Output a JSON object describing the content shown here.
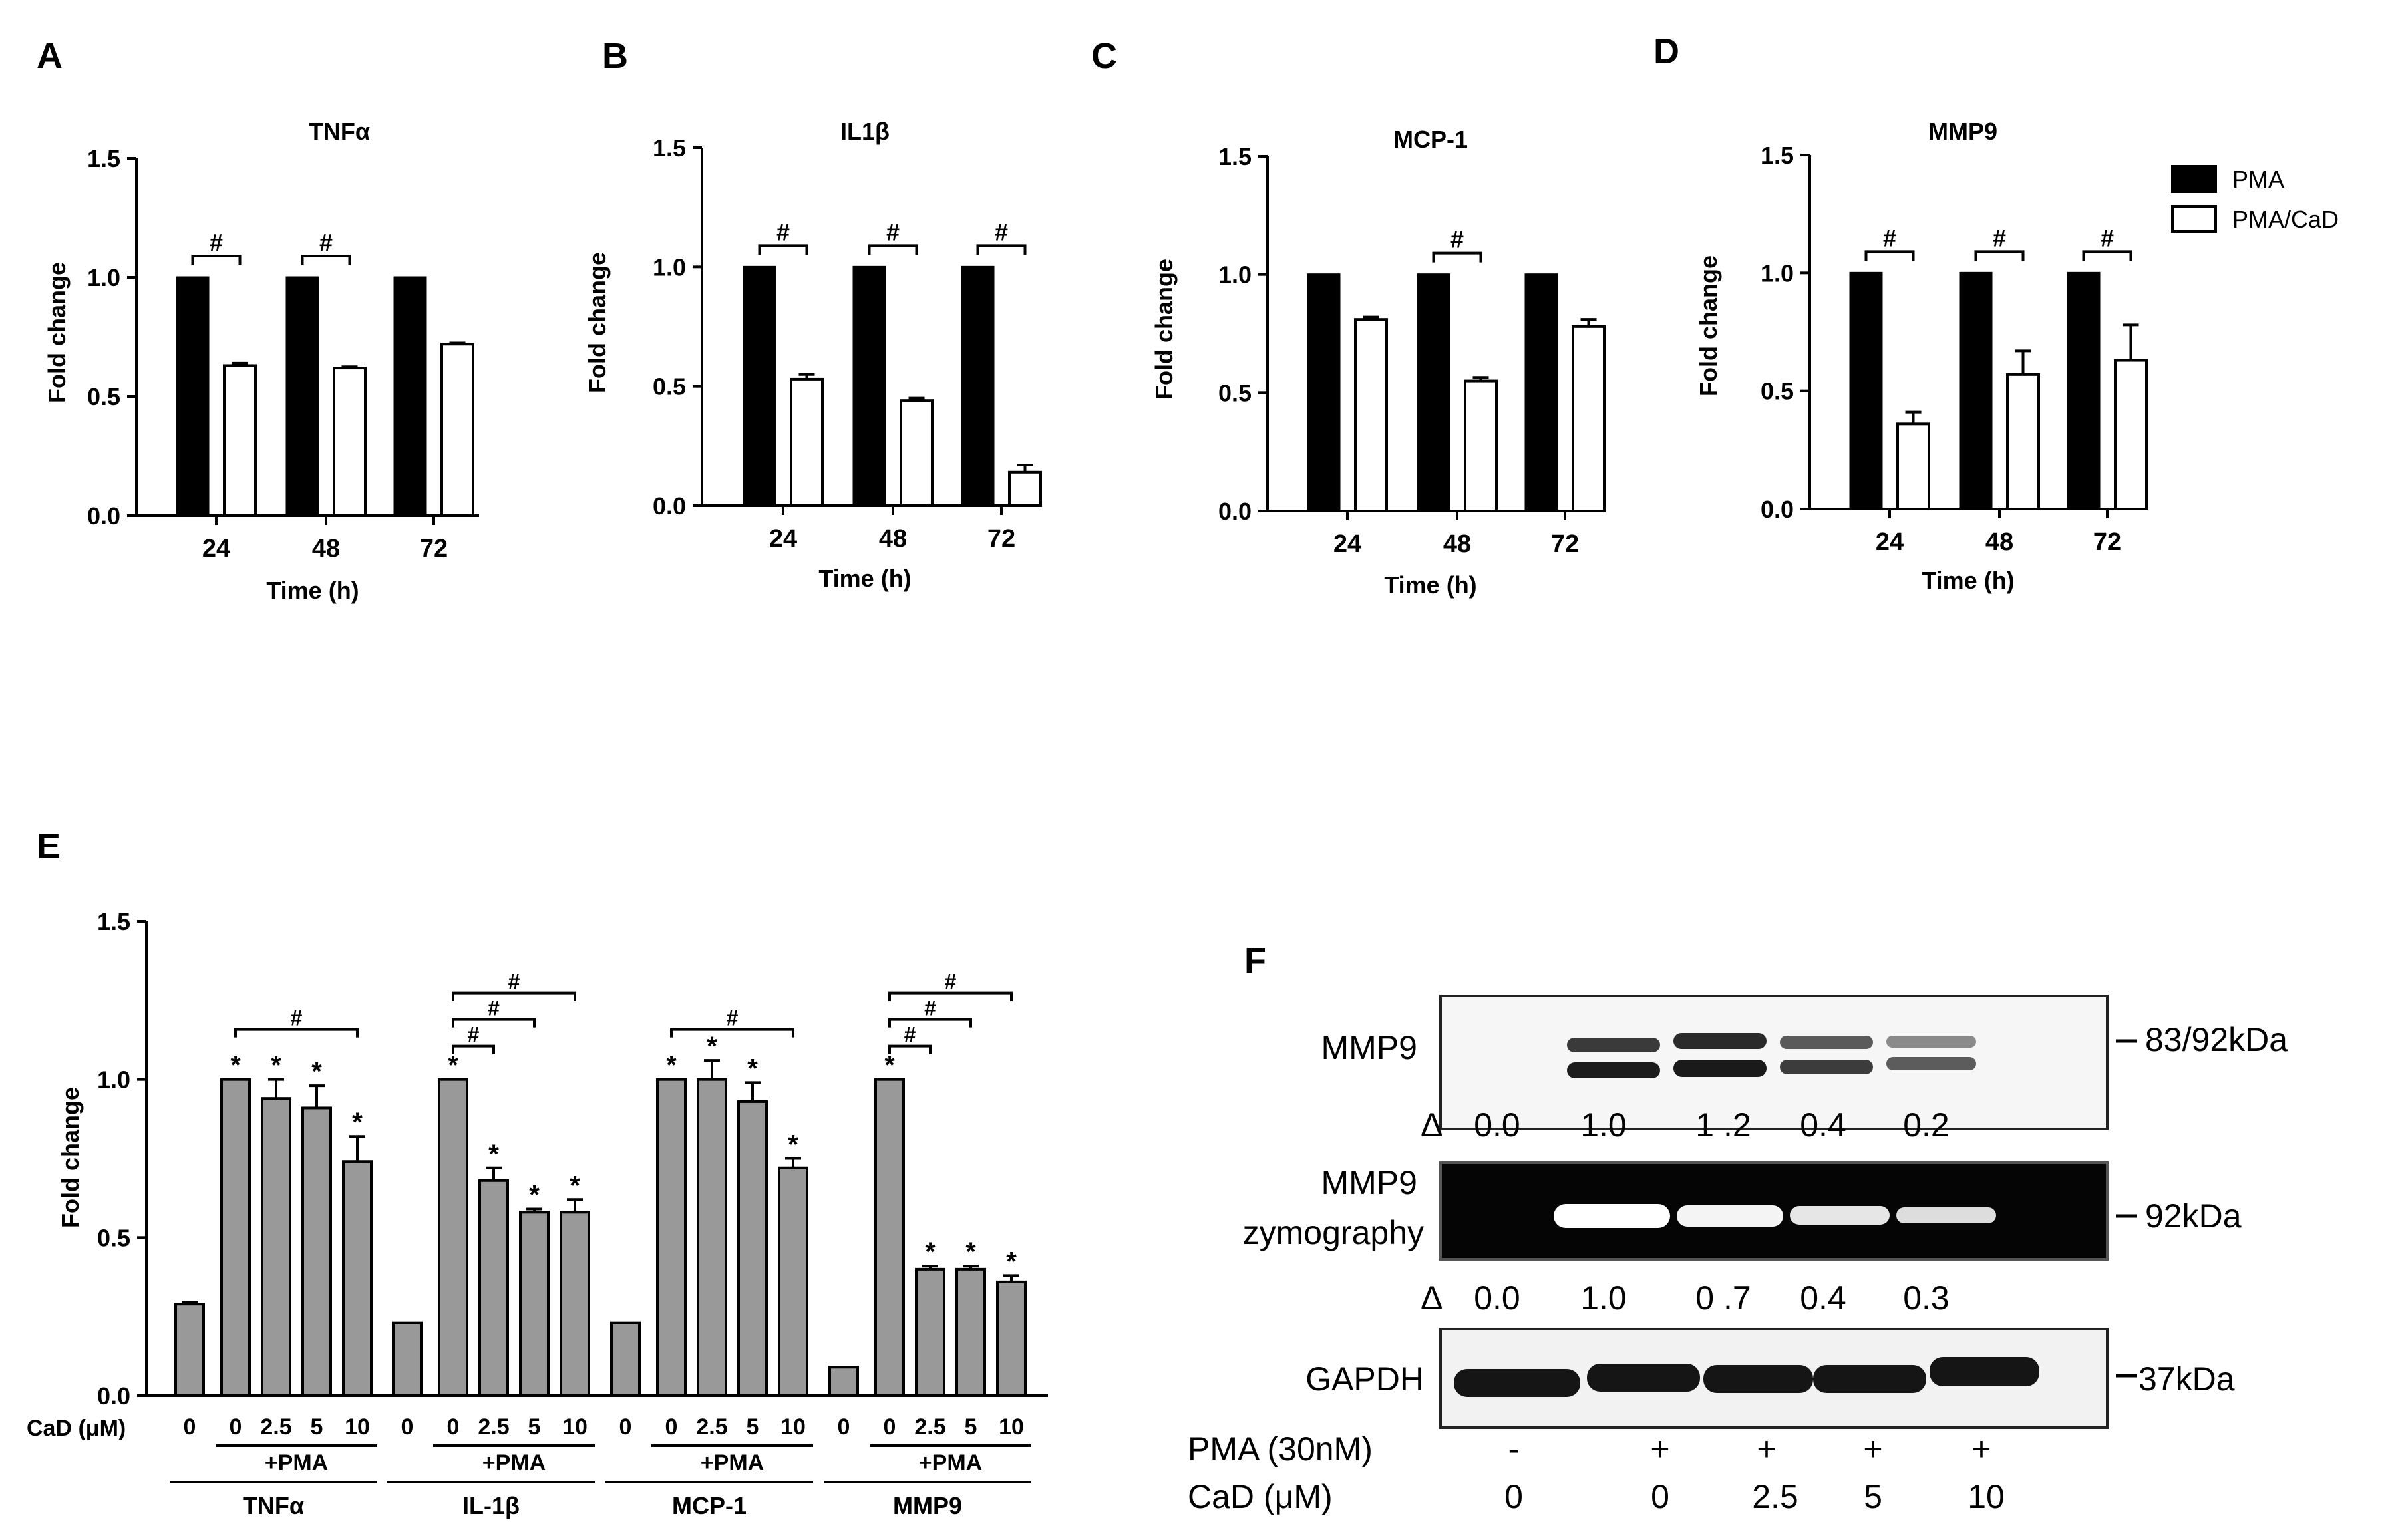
{
  "panels": [
    {
      "letter": "A",
      "title": "TNFα",
      "ylabel": "Fold change",
      "xlabel": "Time (h)",
      "yticks": [
        "0.0",
        "0.5",
        "1.0",
        "1.5"
      ],
      "categories": [
        "24",
        "48",
        "72"
      ],
      "sig_marks": [
        "#",
        "#",
        null
      ]
    },
    {
      "letter": "B",
      "title": "IL1β",
      "ylabel": "Fold change",
      "xlabel": "Time (h)",
      "yticks": [
        "0.0",
        "0.5",
        "1.0",
        "1.5"
      ],
      "categories": [
        "24",
        "48",
        "72"
      ],
      "sig_marks": [
        "#",
        "#",
        "#"
      ]
    },
    {
      "letter": "C",
      "title": "MCP-1",
      "ylabel": "Fold change",
      "xlabel": "Time (h)",
      "yticks": [
        "0.0",
        "0.5",
        "1.0",
        "1.5"
      ],
      "categories": [
        "24",
        "48",
        "72"
      ],
      "sig_marks": [
        null,
        "#",
        null
      ]
    },
    {
      "letter": "D",
      "title": "MMP9",
      "ylabel": "Fold change",
      "xlabel": "Time (h)",
      "yticks": [
        "0.0",
        "0.5",
        "1.0",
        "1.5"
      ],
      "categories": [
        "24",
        "48",
        "72"
      ],
      "sig_marks": [
        "#",
        "#",
        "#"
      ]
    }
  ],
  "legend": {
    "items": [
      {
        "label": "PMA",
        "fill": "#000000"
      },
      {
        "label": "PMA/CaD",
        "fill": "#ffffff"
      }
    ]
  },
  "panel_e": {
    "letter": "E",
    "ylabel": "Fold change",
    "yticks": [
      "0.0",
      "0.5",
      "1.0",
      "1.5"
    ],
    "cad_label": "CaD (μM)",
    "pma_label": "+PMA",
    "dose_labels": [
      "0",
      "0",
      "2.5",
      "5",
      "10"
    ],
    "group_names": [
      "TNFα",
      "IL-1β",
      "MCP-1",
      "MMP9"
    ],
    "star": "*",
    "hash": "#"
  },
  "panel_f": {
    "letter": "F",
    "blot1_label": "MMP9",
    "blot1_size": "83/92kDa",
    "delta": "Δ",
    "quant1": [
      "0.0",
      "1.0",
      "1 .2",
      "0.4",
      "0.2"
    ],
    "blot2_label_line1": "MMP9",
    "blot2_label_line2": "zymography",
    "blot2_size": "92kDa",
    "quant2": [
      "0.0",
      "1.0",
      "0 .7",
      "0.4",
      "0.3"
    ],
    "blot3_label": "GAPDH",
    "blot3_size": "37kDa",
    "pma_row_label": "PMA (30nM)",
    "pma_row": [
      "-",
      "+",
      "+",
      "+",
      "+"
    ],
    "cad_row_label": "CaD (μM)",
    "cad_row": [
      "0",
      "0",
      "2.5",
      "5",
      "10"
    ]
  },
  "colors": {
    "pma_bar": "#000000",
    "cad_bar": "#ffffff",
    "dose_bar": "#999999"
  },
  "chart_data": [
    {
      "type": "bar",
      "title": "TNFα",
      "xlabel": "Time (h)",
      "ylabel": "Fold change",
      "categories": [
        "24",
        "48",
        "72"
      ],
      "ylim": [
        0,
        1.5
      ],
      "series": [
        {
          "name": "PMA",
          "values": [
            1.0,
            1.0,
            1.0
          ],
          "errors": [
            0,
            0,
            0
          ]
        },
        {
          "name": "PMA/CaD",
          "values": [
            0.63,
            0.62,
            0.72
          ],
          "errors": [
            0.01,
            0.005,
            0.005
          ]
        }
      ]
    },
    {
      "type": "bar",
      "title": "IL1β",
      "xlabel": "Time (h)",
      "ylabel": "Fold change",
      "categories": [
        "24",
        "48",
        "72"
      ],
      "ylim": [
        0,
        1.5
      ],
      "series": [
        {
          "name": "PMA",
          "values": [
            1.0,
            1.0,
            1.0
          ],
          "errors": [
            0,
            0,
            0
          ]
        },
        {
          "name": "PMA/CaD",
          "values": [
            0.53,
            0.44,
            0.14
          ],
          "errors": [
            0.02,
            0.01,
            0.03
          ]
        }
      ]
    },
    {
      "type": "bar",
      "title": "MCP-1",
      "xlabel": "Time (h)",
      "ylabel": "Fold change",
      "categories": [
        "24",
        "48",
        "72"
      ],
      "ylim": [
        0,
        1.5
      ],
      "series": [
        {
          "name": "PMA",
          "values": [
            1.0,
            1.0,
            1.0
          ],
          "errors": [
            0,
            0,
            0
          ]
        },
        {
          "name": "PMA/CaD",
          "values": [
            0.81,
            0.55,
            0.78
          ],
          "errors": [
            0.01,
            0.015,
            0.03
          ]
        }
      ]
    },
    {
      "type": "bar",
      "title": "MMP9",
      "xlabel": "Time (h)",
      "ylabel": "Fold change",
      "categories": [
        "24",
        "48",
        "72"
      ],
      "ylim": [
        0,
        1.5
      ],
      "series": [
        {
          "name": "PMA",
          "values": [
            1.0,
            1.0,
            1.0
          ],
          "errors": [
            0,
            0,
            0
          ]
        },
        {
          "name": "PMA/CaD",
          "values": [
            0.36,
            0.57,
            0.63
          ],
          "errors": [
            0.05,
            0.1,
            0.15
          ]
        }
      ]
    },
    {
      "type": "bar",
      "ylabel": "Fold change",
      "ylim": [
        0,
        1.5
      ],
      "xlabel": "CaD (μM)",
      "groups": [
        {
          "name": "TNFα",
          "doses": [
            "0",
            "0",
            "2.5",
            "5",
            "10"
          ],
          "pma": [
            false,
            true,
            true,
            true,
            true
          ],
          "values": [
            0.29,
            1.0,
            0.94,
            0.91,
            0.74
          ],
          "errors": [
            0.005,
            0,
            0.06,
            0.07,
            0.08
          ],
          "stars": [
            false,
            true,
            true,
            true,
            true
          ]
        },
        {
          "name": "IL-1β",
          "doses": [
            "0",
            "0",
            "2.5",
            "5",
            "10"
          ],
          "pma": [
            false,
            true,
            true,
            true,
            true
          ],
          "values": [
            0.23,
            1.0,
            0.68,
            0.58,
            0.58
          ],
          "errors": [
            0,
            0,
            0.04,
            0.01,
            0.04
          ],
          "stars": [
            false,
            true,
            true,
            true,
            true
          ]
        },
        {
          "name": "MCP-1",
          "doses": [
            "0",
            "0",
            "2.5",
            "5",
            "10"
          ],
          "pma": [
            false,
            true,
            true,
            true,
            true
          ],
          "values": [
            0.23,
            1.0,
            1.0,
            0.93,
            0.72
          ],
          "errors": [
            0,
            0,
            0.06,
            0.06,
            0.03
          ],
          "stars": [
            false,
            true,
            true,
            true,
            true
          ]
        },
        {
          "name": "MMP9",
          "doses": [
            "0",
            "0",
            "2.5",
            "5",
            "10"
          ],
          "pma": [
            false,
            true,
            true,
            true,
            true
          ],
          "values": [
            0.09,
            1.0,
            0.4,
            0.4,
            0.36
          ],
          "errors": [
            0,
            0,
            0.01,
            0.01,
            0.02
          ],
          "stars": [
            false,
            true,
            true,
            true,
            true
          ]
        }
      ]
    }
  ]
}
